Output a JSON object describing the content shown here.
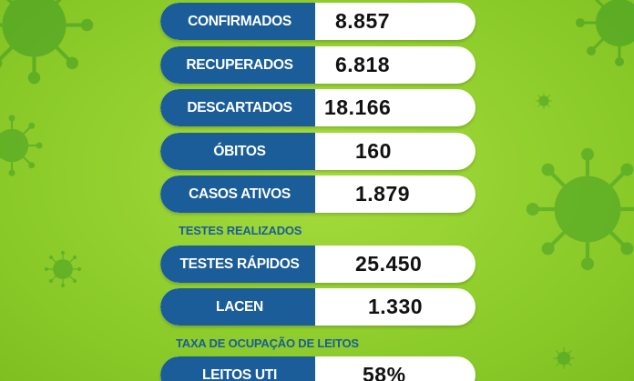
{
  "stats": [
    {
      "label": "CONFIRMADOS",
      "value": "8.857"
    },
    {
      "label": "RECUPERADOS",
      "value": "6.818"
    },
    {
      "label": "DESCARTADOS",
      "value": "18.166"
    },
    {
      "label": "ÓBITOS",
      "value": "160"
    },
    {
      "label": "CASOS ATIVOS",
      "value": "1.879"
    }
  ],
  "tests_section": {
    "title": "TESTES REALIZADOS",
    "items": [
      {
        "label": "TESTES RÁPIDOS",
        "value": "25.450"
      },
      {
        "label": "LACEN",
        "value": "1.330"
      }
    ]
  },
  "beds_section": {
    "title": "TAXA DE OCUPAÇÃO DE LEITOS",
    "items": [
      {
        "label": "LEITOS UTI",
        "value": "58%"
      }
    ]
  },
  "colors": {
    "background": "#8fce2c",
    "label_bg": "#1b5d98",
    "value_bg": "#ffffff",
    "section_title": "#1b5d98",
    "virus": "#4ea92a"
  },
  "icons": [
    "virus-icon"
  ]
}
